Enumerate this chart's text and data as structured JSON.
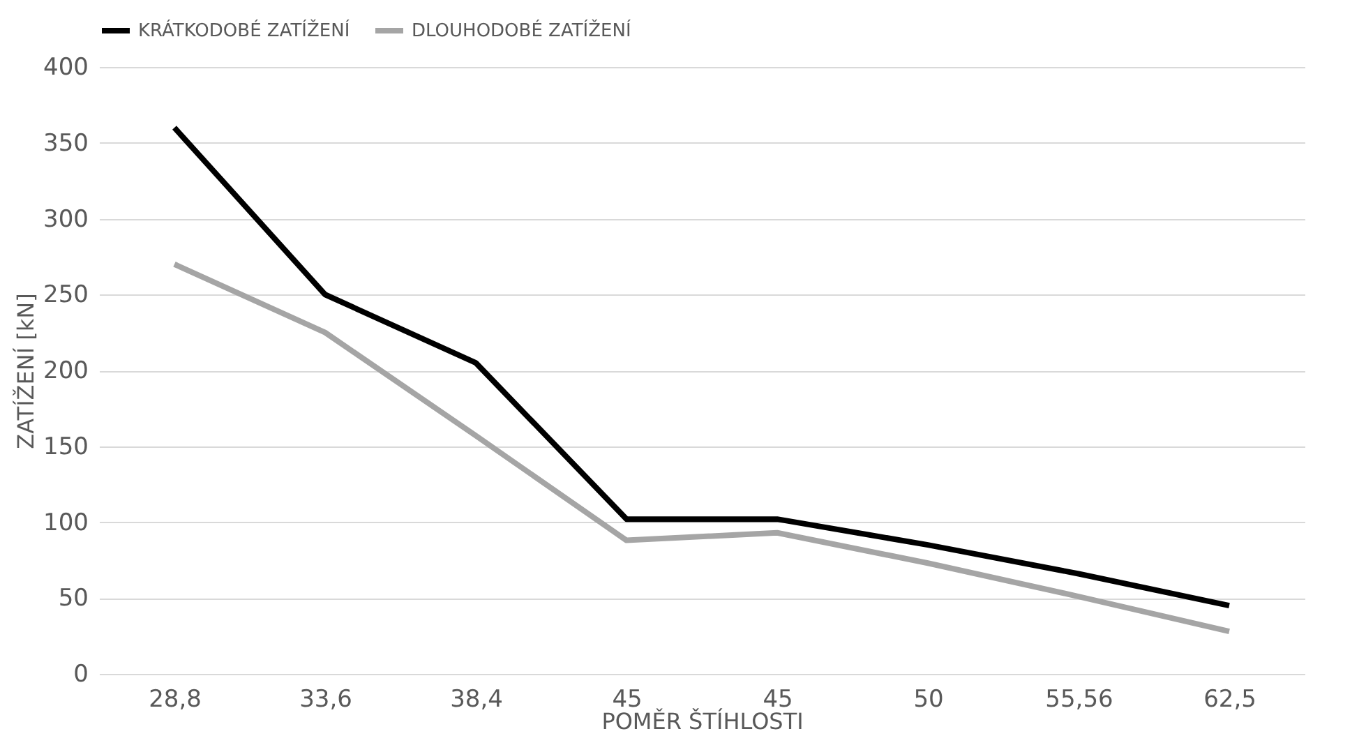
{
  "chart_data": {
    "type": "line",
    "xlabel": "POMĚR ŠTÍHLOSTI",
    "ylabel": "ZATÍŽENÍ [kN]",
    "categories": [
      "28,8",
      "33,6",
      "38,4",
      "45",
      "45",
      "50",
      "55,56",
      "62,5"
    ],
    "series": [
      {
        "name": "KRÁTKODOBÉ ZATÍŽENÍ",
        "color": "#000000",
        "values": [
          360,
          250,
          205,
          102,
          102,
          85,
          66,
          45
        ]
      },
      {
        "name": "DLOUHODOBÉ ZATÍŽENÍ",
        "color": "#a5a5a5",
        "values": [
          270,
          225,
          157,
          88,
          93,
          73,
          51,
          28
        ]
      }
    ],
    "ylim": [
      0,
      400
    ],
    "yticks": [
      0,
      50,
      100,
      150,
      200,
      250,
      300,
      350,
      400
    ],
    "grid": "y",
    "legend": "top",
    "marker": "none",
    "line_style": "solid"
  }
}
